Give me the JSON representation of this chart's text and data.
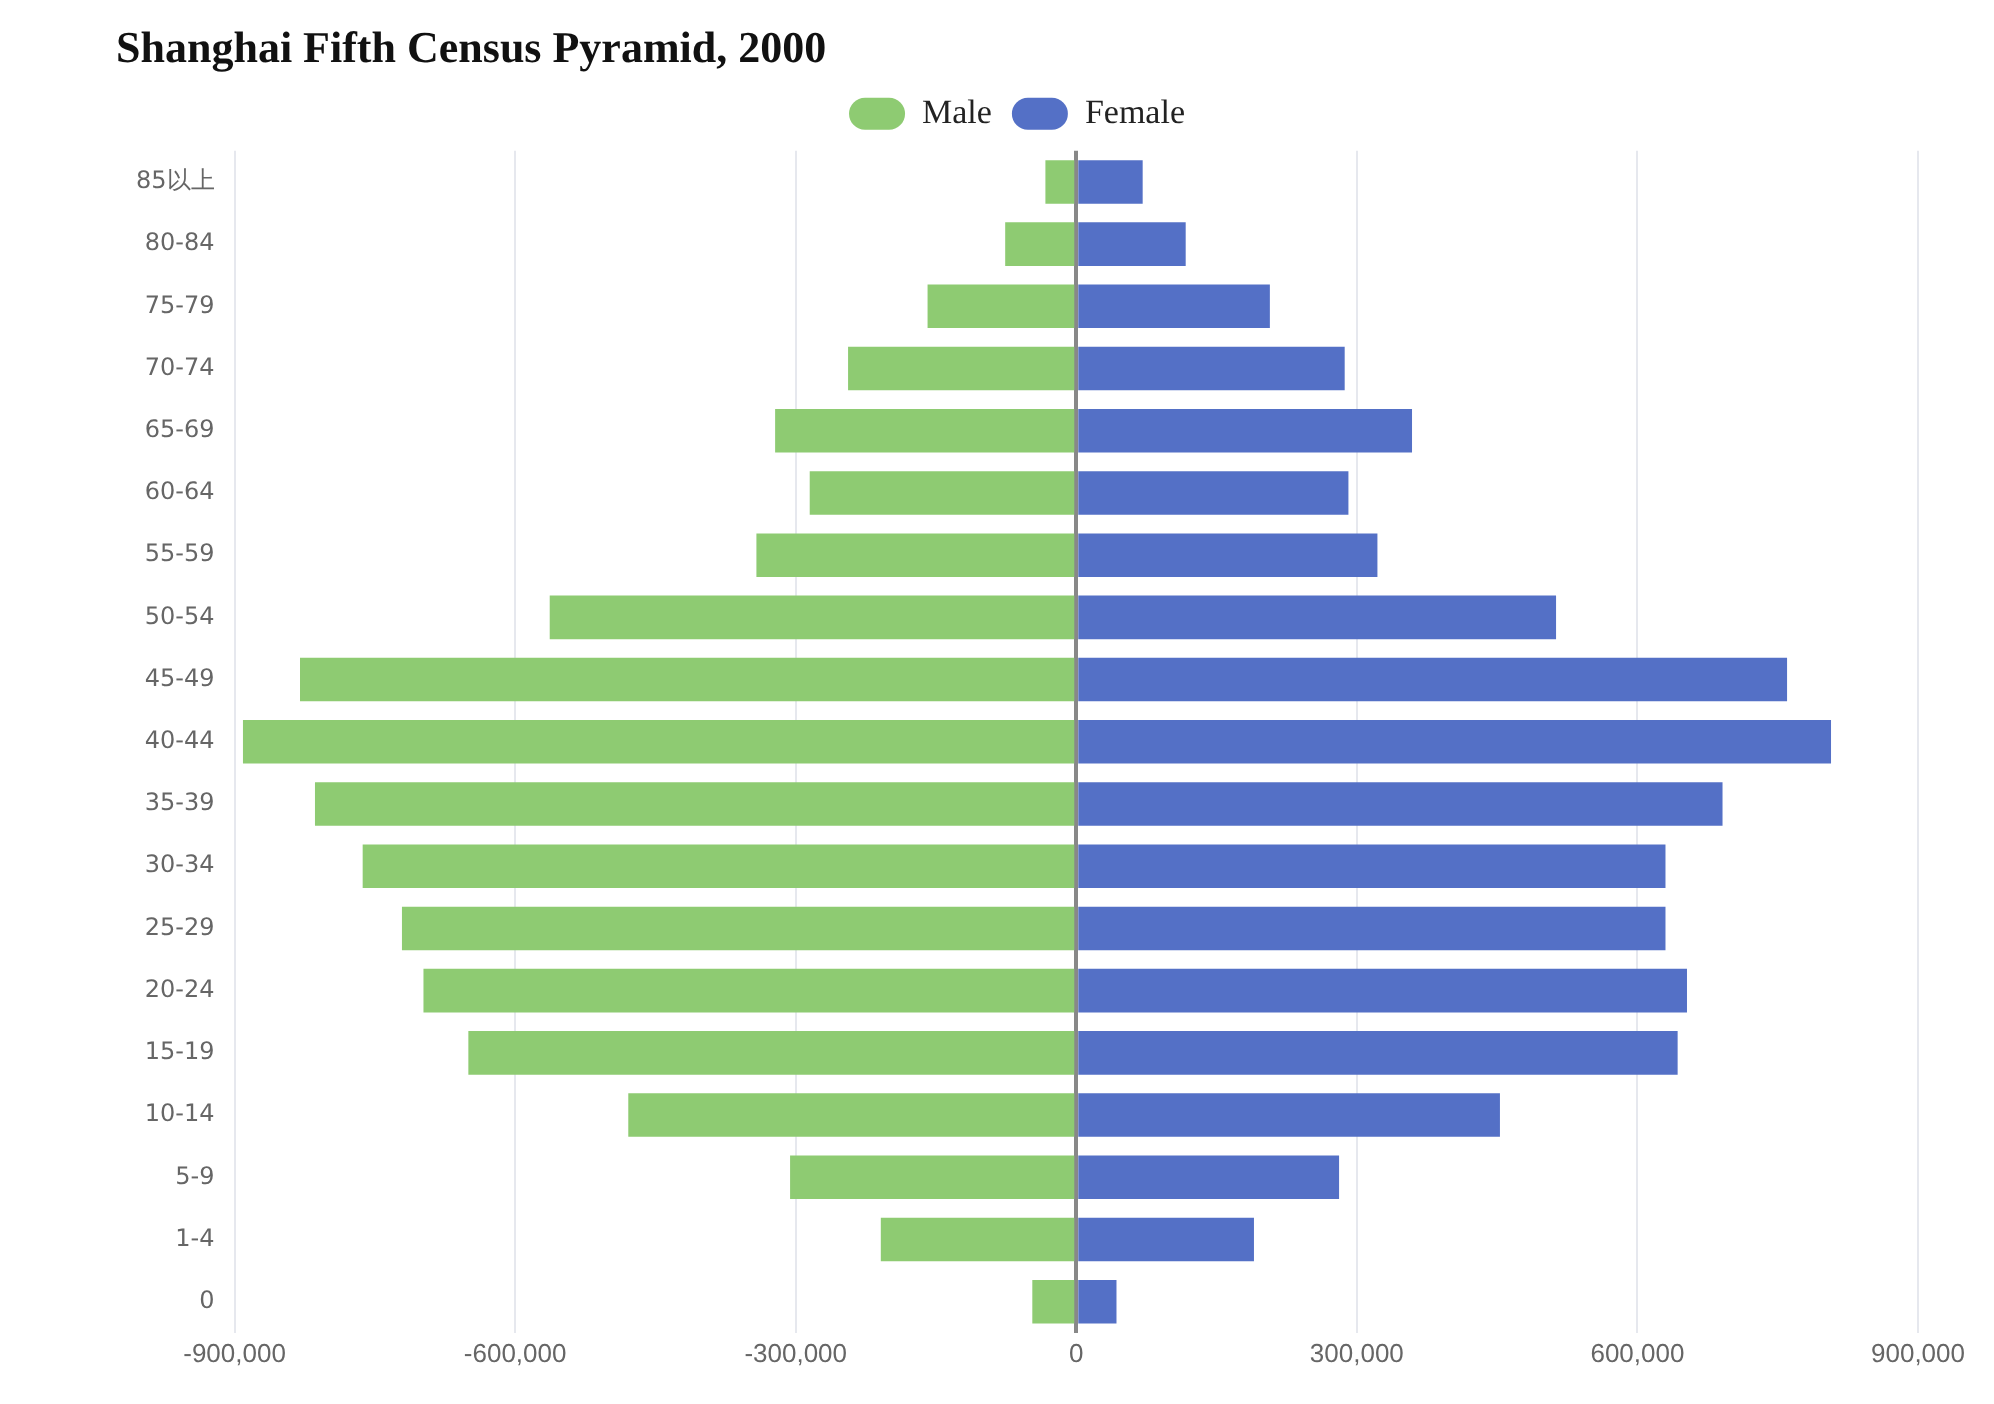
{
  "chart_data": {
    "type": "bar",
    "title": "Shanghai Fifth Census Pyramid, 2000",
    "orientation": "horizontal",
    "stacked": true,
    "categories": [
      "85以上",
      "80-84",
      "75-79",
      "70-74",
      "65-69",
      "60-64",
      "55-59",
      "50-54",
      "45-49",
      "40-44",
      "35-39",
      "30-34",
      "25-29",
      "20-24",
      "15-19",
      "10-14",
      "5-9",
      "1-4",
      "0"
    ],
    "series": [
      {
        "name": "Male",
        "color": "#8ecb72",
        "values": [
          -33000,
          -76000,
          -159000,
          -244000,
          -322000,
          -285000,
          -342000,
          -563000,
          -830000,
          -891000,
          -814000,
          -763000,
          -721000,
          -698000,
          -650000,
          -479000,
          -306000,
          -209000,
          -47000
        ]
      },
      {
        "name": "Female",
        "color": "#5470c6",
        "values": [
          71000,
          117000,
          207000,
          287000,
          359000,
          291000,
          322000,
          513000,
          760000,
          807000,
          691000,
          630000,
          630000,
          653000,
          643000,
          453000,
          281000,
          190000,
          43000
        ]
      }
    ],
    "xlim": [
      -900000,
      900000
    ],
    "xticks": [
      {
        "value": -900000,
        "label": "-900,000"
      },
      {
        "value": -600000,
        "label": "-600,000"
      },
      {
        "value": -300000,
        "label": "-300,000"
      },
      0,
      {
        "value": 300000,
        "label": "300,000"
      },
      {
        "value": 600000,
        "label": "600,000"
      },
      {
        "value": 900000,
        "label": "900,000"
      }
    ],
    "grid": "x",
    "legend": "top"
  }
}
